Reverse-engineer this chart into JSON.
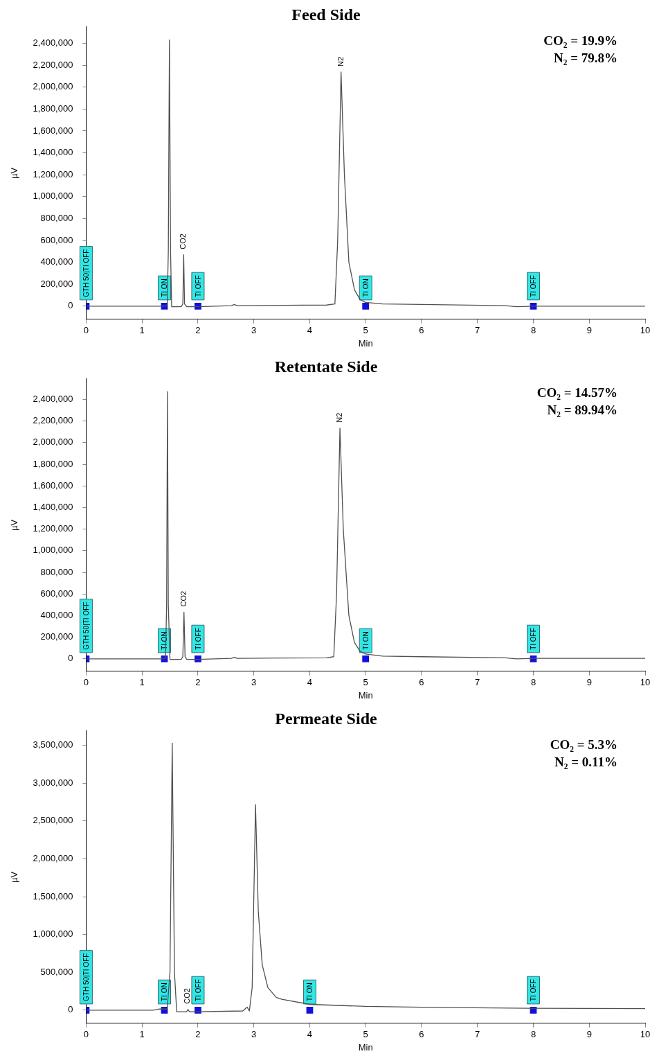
{
  "chart_data": [
    {
      "type": "line",
      "title": "Feed Side",
      "xlabel": "Min",
      "ylabel": "µV",
      "xlim": [
        0,
        10
      ],
      "xticks": [
        0,
        1,
        2,
        3,
        4,
        5,
        6,
        7,
        8,
        9,
        10
      ],
      "ylim": [
        -120000,
        2550000
      ],
      "yticks": [
        {
          "value": 0,
          "label": "0"
        },
        {
          "value": 200000,
          "label": "200,000"
        },
        {
          "value": 400000,
          "label": "400,000"
        },
        {
          "value": 600000,
          "label": "600,000"
        },
        {
          "value": 800000,
          "label": "800,000"
        },
        {
          "value": 1000000,
          "label": "1,000,000"
        },
        {
          "value": 1200000,
          "label": "1,200,000"
        },
        {
          "value": 1400000,
          "label": "1,400,000"
        },
        {
          "value": 1600000,
          "label": "1,600,000"
        },
        {
          "value": 1800000,
          "label": "1,800,000"
        },
        {
          "value": 2000000,
          "label": "2,000,000"
        },
        {
          "value": 2200000,
          "label": "2,200,000"
        },
        {
          "value": 2400000,
          "label": "2,400,000"
        }
      ],
      "grid": false,
      "legend": false,
      "marker": "none",
      "line_style": "solid",
      "series": [
        {
          "color": "#505050",
          "x": [
            0,
            1.4,
            1.45,
            1.47,
            1.49,
            1.51,
            1.53,
            1.7,
            1.73,
            1.745,
            1.76,
            1.8,
            2.0,
            2.6,
            2.65,
            2.7,
            3.5,
            4.3,
            4.45,
            4.5,
            4.56,
            4.62,
            4.7,
            4.8,
            4.9,
            5.0,
            5.3,
            6.0,
            7.5,
            7.7,
            8.0,
            10
          ],
          "values": [
            0,
            0,
            5000,
            500000,
            2430000,
            500000,
            -5000,
            -5000,
            20000,
            469000,
            20000,
            -5000,
            -5000,
            5000,
            15000,
            5000,
            8000,
            10000,
            20000,
            600000,
            2138000,
            1200000,
            400000,
            150000,
            60000,
            35000,
            20000,
            15000,
            5000,
            -5000,
            0,
            0
          ]
        },
        {
          "type": "scatter",
          "marker": "square",
          "color": "#1010e0",
          "x": [
            0,
            1.4,
            2.0,
            5.0,
            8.0
          ],
          "values": [
            0,
            0,
            0,
            0,
            0
          ],
          "value_labels": [
            "GTH 50|TI OFF",
            "TI ON",
            "TI OFF",
            "TI ON",
            "TI OFF"
          ]
        }
      ],
      "annotations": [
        "CO₂ = 19.9%",
        "N₂ = 79.8%",
        {
          "text": "CO2",
          "x": 1.745,
          "y": 469000
        },
        {
          "text": "N2",
          "x": 4.56,
          "y": 2138000
        }
      ]
    },
    {
      "type": "line",
      "title": "Retentate Side",
      "xlabel": "Min",
      "ylabel": "µV",
      "xlim": [
        0,
        10
      ],
      "xticks": [
        0,
        1,
        2,
        3,
        4,
        5,
        6,
        7,
        8,
        9,
        10
      ],
      "ylim": [
        -115000,
        2590000
      ],
      "yticks": [
        {
          "value": 0,
          "label": "0"
        },
        {
          "value": 200000,
          "label": "200,000"
        },
        {
          "value": 400000,
          "label": "400,000"
        },
        {
          "value": 600000,
          "label": "600,000"
        },
        {
          "value": 800000,
          "label": "800,000"
        },
        {
          "value": 1000000,
          "label": "1,000,000"
        },
        {
          "value": 1200000,
          "label": "1,200,000"
        },
        {
          "value": 1400000,
          "label": "1,400,000"
        },
        {
          "value": 1600000,
          "label": "1,600,000"
        },
        {
          "value": 1800000,
          "label": "1,800,000"
        },
        {
          "value": 2000000,
          "label": "2,000,000"
        },
        {
          "value": 2200000,
          "label": "2,200,000"
        },
        {
          "value": 2400000,
          "label": "2,400,000"
        }
      ],
      "grid": false,
      "legend": false,
      "marker": "none",
      "line_style": "solid",
      "series": [
        {
          "color": "#505050",
          "x": [
            0,
            1.38,
            1.42,
            1.44,
            1.455,
            1.47,
            1.5,
            1.7,
            1.73,
            1.75,
            1.77,
            1.8,
            2.0,
            2.6,
            2.65,
            2.7,
            3.5,
            4.3,
            4.43,
            4.48,
            4.54,
            4.6,
            4.7,
            4.8,
            4.9,
            5.0,
            5.3,
            6.0,
            7.5,
            7.7,
            8.0,
            10
          ],
          "values": [
            0,
            0,
            5000,
            500000,
            2473000,
            500000,
            -5000,
            -5000,
            20000,
            432000,
            20000,
            -5000,
            -5000,
            5000,
            15000,
            5000,
            8000,
            10000,
            20000,
            600000,
            2135000,
            1200000,
            400000,
            150000,
            70000,
            45000,
            25000,
            20000,
            10000,
            0,
            5000,
            5000
          ]
        },
        {
          "type": "scatter",
          "marker": "square",
          "color": "#1010e0",
          "x": [
            0,
            1.4,
            2.0,
            5.0,
            8.0
          ],
          "values": [
            0,
            0,
            0,
            0,
            0
          ],
          "value_labels": [
            "GTH 50|TI OFF",
            "TI ON",
            "TI OFF",
            "TI ON",
            "TI OFF"
          ]
        }
      ],
      "annotations": [
        "CO₂ = 14.57%",
        "N₂ = 89.94%",
        {
          "text": "CO2",
          "x": 1.75,
          "y": 432000
        },
        {
          "text": "N2",
          "x": 4.54,
          "y": 2135000
        }
      ]
    },
    {
      "type": "line",
      "title": "Permeate Side",
      "xlabel": "Min",
      "ylabel": "µV",
      "xlim": [
        0,
        10
      ],
      "xticks": [
        0,
        1,
        2,
        3,
        4,
        5,
        6,
        7,
        8,
        9,
        10
      ],
      "ylim": [
        -173000,
        3690000
      ],
      "yticks": [
        {
          "value": 0,
          "label": "0"
        },
        {
          "value": 500000,
          "label": "500,000"
        },
        {
          "value": 1000000,
          "label": "1,000,000"
        },
        {
          "value": 1500000,
          "label": "1,500,000"
        },
        {
          "value": 2000000,
          "label": "2,000,000"
        },
        {
          "value": 2500000,
          "label": "2,500,000"
        },
        {
          "value": 3000000,
          "label": "3,000,000"
        },
        {
          "value": 3500000,
          "label": "3,500,000"
        }
      ],
      "grid": false,
      "legend": false,
      "marker": "none",
      "line_style": "solid",
      "series": [
        {
          "color": "#505050",
          "x": [
            0,
            1.2,
            1.3,
            1.45,
            1.5,
            1.54,
            1.58,
            1.62,
            1.8,
            1.82,
            1.85,
            2.0,
            2.8,
            2.88,
            2.92,
            2.97,
            3.03,
            3.08,
            3.15,
            3.25,
            3.4,
            3.5,
            4.0,
            5.0,
            6.0,
            8.0,
            10
          ],
          "values": [
            0,
            0,
            15000,
            15000,
            500000,
            3530000,
            500000,
            -20000,
            -20000,
            10000,
            -20000,
            -20000,
            -10000,
            40000,
            -10000,
            300000,
            2716000,
            1300000,
            600000,
            300000,
            170000,
            144000,
            77000,
            50000,
            40000,
            25000,
            20000
          ]
        },
        {
          "type": "scatter",
          "marker": "square",
          "color": "#1010e0",
          "x": [
            0,
            1.4,
            2.0,
            4.0,
            8.0
          ],
          "values": [
            0,
            0,
            0,
            0,
            0
          ],
          "value_labels": [
            "GTH 50|TI OFF",
            "TI ON",
            "TI OFF",
            "TI ON",
            "TI OFF"
          ]
        }
      ],
      "annotations": [
        "CO₂ = 5.3%",
        "N₂ = 0.11%",
        {
          "text": "CO2",
          "x": 1.82,
          "y": 10000
        }
      ]
    }
  ]
}
